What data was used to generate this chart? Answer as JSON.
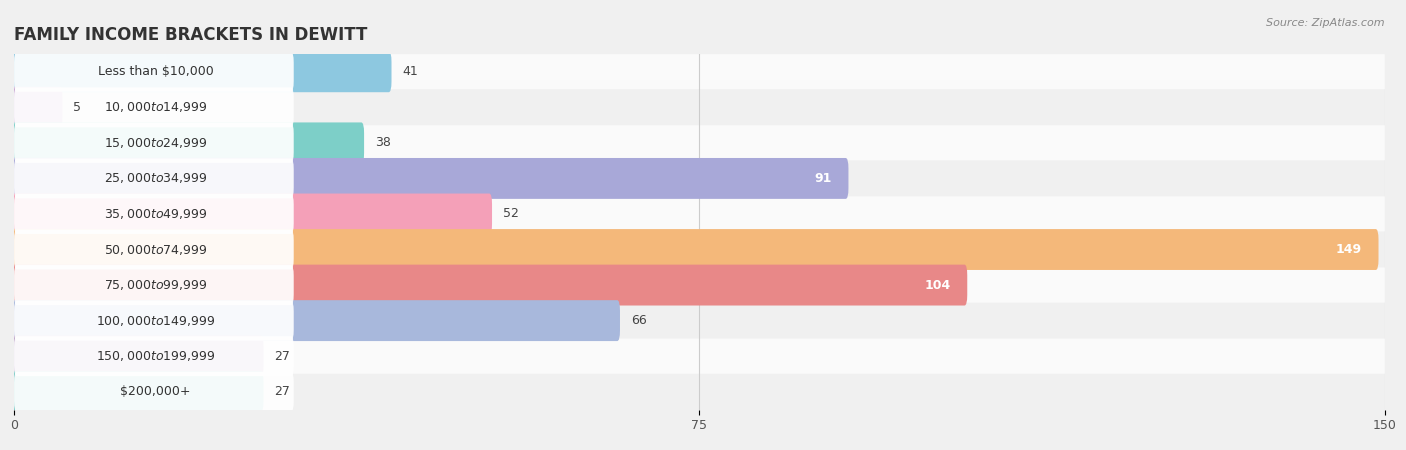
{
  "title": "FAMILY INCOME BRACKETS IN DEWITT",
  "source": "Source: ZipAtlas.com",
  "categories": [
    "Less than $10,000",
    "$10,000 to $14,999",
    "$15,000 to $24,999",
    "$25,000 to $34,999",
    "$35,000 to $49,999",
    "$50,000 to $74,999",
    "$75,000 to $99,999",
    "$100,000 to $149,999",
    "$150,000 to $199,999",
    "$200,000+"
  ],
  "values": [
    41,
    5,
    38,
    91,
    52,
    149,
    104,
    66,
    27,
    27
  ],
  "bar_colors": [
    "#8DC8E0",
    "#C9A8D4",
    "#7DCFC8",
    "#A8A8D8",
    "#F4A0B8",
    "#F4B87A",
    "#E88888",
    "#A8B8DC",
    "#C0A8CC",
    "#80CCC8"
  ],
  "row_bg_light": "#f0f0f0",
  "row_bg_white": "#fafafa",
  "xlim": [
    0,
    150
  ],
  "xticks": [
    0,
    75,
    150
  ],
  "bar_height": 0.55,
  "figsize": [
    14.06,
    4.5
  ],
  "dpi": 100,
  "bg_color": "#f0f0f0",
  "title_fontsize": 12,
  "label_fontsize": 9,
  "value_fontsize": 9,
  "value_white_threshold": 88
}
